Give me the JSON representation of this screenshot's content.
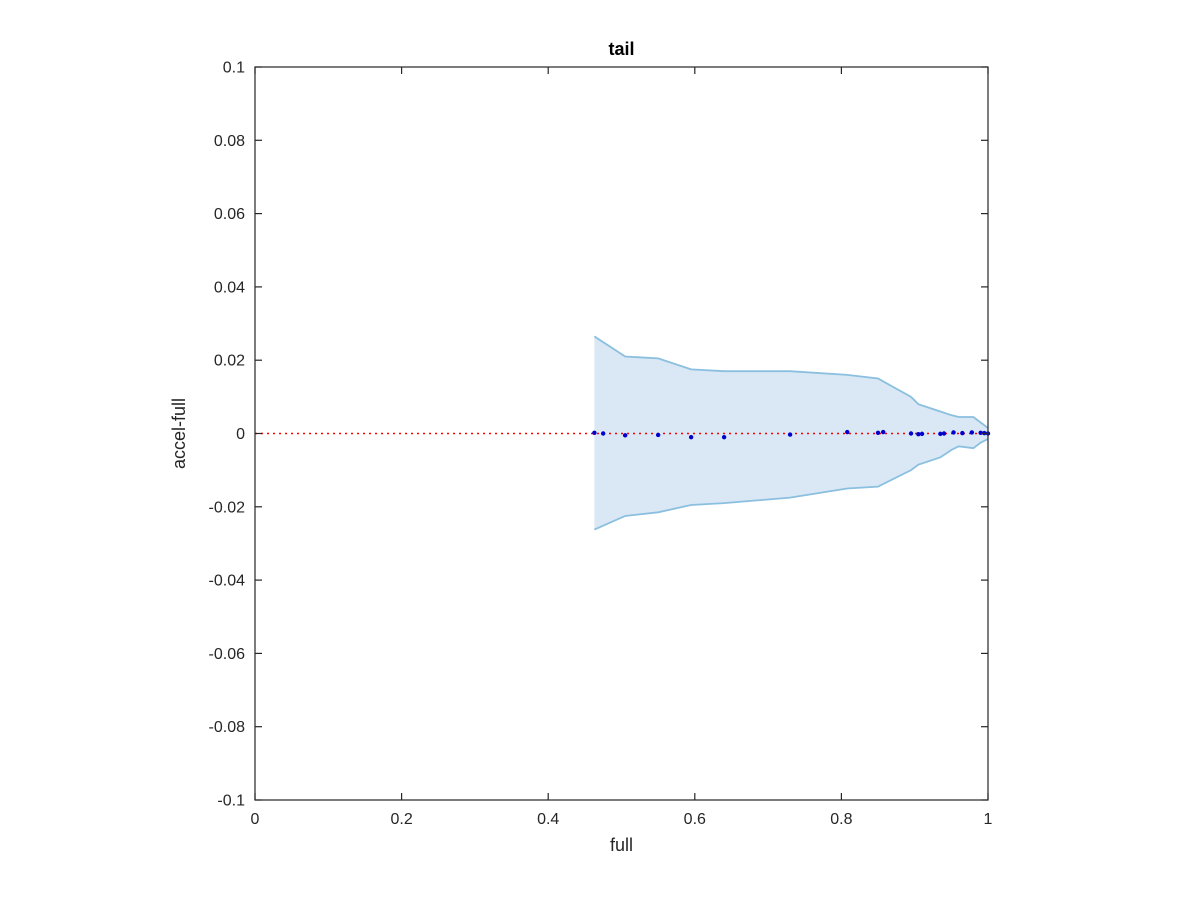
{
  "chart_data": {
    "type": "scatter",
    "title": "tail",
    "xlabel": "full",
    "ylabel": "accel-full",
    "xlim": [
      0,
      1
    ],
    "ylim": [
      -0.1,
      0.1
    ],
    "x_ticks": [
      0,
      0.2,
      0.4,
      0.6,
      0.8,
      1
    ],
    "x_tick_labels": [
      "0",
      "0.2",
      "0.4",
      "0.6",
      "0.8",
      "1"
    ],
    "y_ticks": [
      -0.1,
      -0.08,
      -0.06,
      -0.04,
      -0.02,
      0,
      0.02,
      0.04,
      0.06,
      0.08,
      0.1
    ],
    "y_tick_labels": [
      "-0.1",
      "-0.08",
      "-0.06",
      "-0.04",
      "-0.02",
      "0",
      "0.02",
      "0.04",
      "0.06",
      "0.08",
      "0.1"
    ],
    "grid": false,
    "reference_line": {
      "y": 0,
      "style": "dotted",
      "color": "#ff0000"
    },
    "band": {
      "color_fill": "#d9e8f4",
      "color_edge": "#8bbfe0",
      "x": [
        0.463,
        0.505,
        0.55,
        0.595,
        0.64,
        0.73,
        0.808,
        0.85,
        0.895,
        0.905,
        0.935,
        0.95,
        0.96,
        0.98,
        0.99,
        1.0
      ],
      "upper": [
        0.0265,
        0.021,
        0.0205,
        0.0175,
        0.017,
        0.017,
        0.016,
        0.015,
        0.01,
        0.008,
        0.006,
        0.005,
        0.0045,
        0.0045,
        0.003,
        0.0015
      ],
      "lower": [
        -0.0262,
        -0.0225,
        -0.0215,
        -0.0195,
        -0.019,
        -0.0175,
        -0.015,
        -0.0145,
        -0.01,
        -0.0085,
        -0.0065,
        -0.0045,
        -0.0035,
        -0.004,
        -0.0025,
        -0.0015
      ]
    },
    "series": [
      {
        "color": "#0000cc",
        "x": [
          0.463,
          0.475,
          0.505,
          0.55,
          0.595,
          0.64,
          0.73,
          0.808,
          0.85,
          0.857,
          0.895,
          0.905,
          0.91,
          0.935,
          0.94,
          0.953,
          0.965,
          0.978,
          0.99,
          0.995,
          1.0
        ],
        "y": [
          0.0002,
          0.0,
          -0.0005,
          -0.0004,
          -0.001,
          -0.001,
          -0.0003,
          0.0004,
          0.0002,
          0.0004,
          0.0,
          -0.0002,
          -0.0001,
          -0.0001,
          0.0,
          0.0003,
          0.0001,
          0.0003,
          0.0002,
          0.0001,
          0.0
        ]
      }
    ]
  }
}
